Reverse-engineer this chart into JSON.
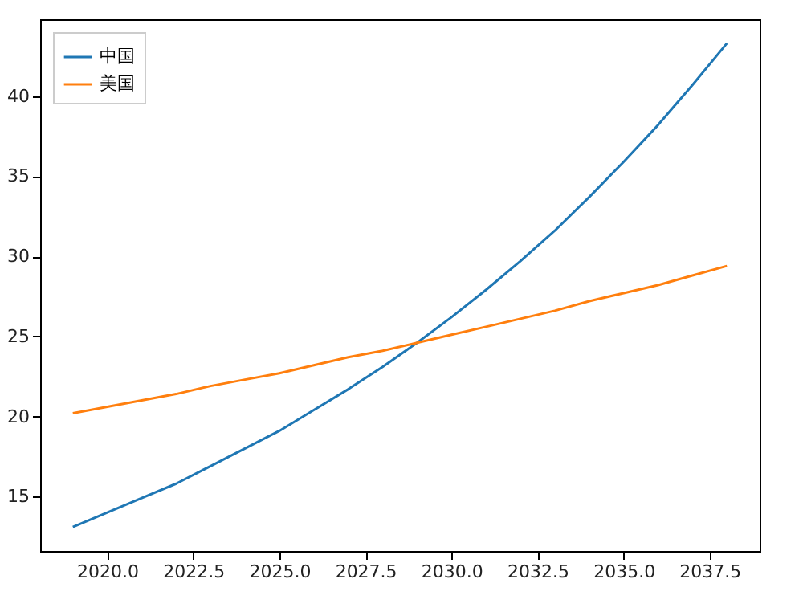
{
  "chart_data": {
    "type": "line",
    "x": [
      2019,
      2020,
      2021,
      2022,
      2023,
      2024,
      2025,
      2026,
      2027,
      2028,
      2029,
      2030,
      2031,
      2032,
      2033,
      2034,
      2035,
      2036,
      2037,
      2038
    ],
    "series": [
      {
        "name": "中国",
        "color": "#1f77b4",
        "values": [
          13.1,
          14.0,
          14.9,
          15.8,
          16.9,
          18.0,
          19.1,
          20.4,
          21.7,
          23.1,
          24.6,
          26.2,
          27.9,
          29.7,
          31.6,
          33.7,
          35.9,
          38.2,
          40.7,
          43.3
        ]
      },
      {
        "name": "美国",
        "color": "#ff7f0e",
        "values": [
          20.2,
          20.6,
          21.0,
          21.4,
          21.9,
          22.3,
          22.7,
          23.2,
          23.7,
          24.1,
          24.6,
          25.1,
          25.6,
          26.1,
          26.6,
          27.2,
          27.7,
          28.2,
          28.8,
          29.4
        ]
      }
    ],
    "xlim": [
      2018.05,
      2038.95
    ],
    "xticks": [
      {
        "value": 2020,
        "label": "2020.0"
      },
      {
        "value": 2022.5,
        "label": "2022.5"
      },
      {
        "value": 2025,
        "label": "2025.0"
      },
      {
        "value": 2027.5,
        "label": "2027.5"
      },
      {
        "value": 2030,
        "label": "2030.0"
      },
      {
        "value": 2032.5,
        "label": "2032.5"
      },
      {
        "value": 2035,
        "label": "2035.0"
      },
      {
        "value": 2037.5,
        "label": "2037.5"
      }
    ],
    "ylim": [
      11.6,
      44.8
    ],
    "yticks": [
      15,
      20,
      25,
      30,
      35,
      40
    ],
    "legend": "top left"
  }
}
